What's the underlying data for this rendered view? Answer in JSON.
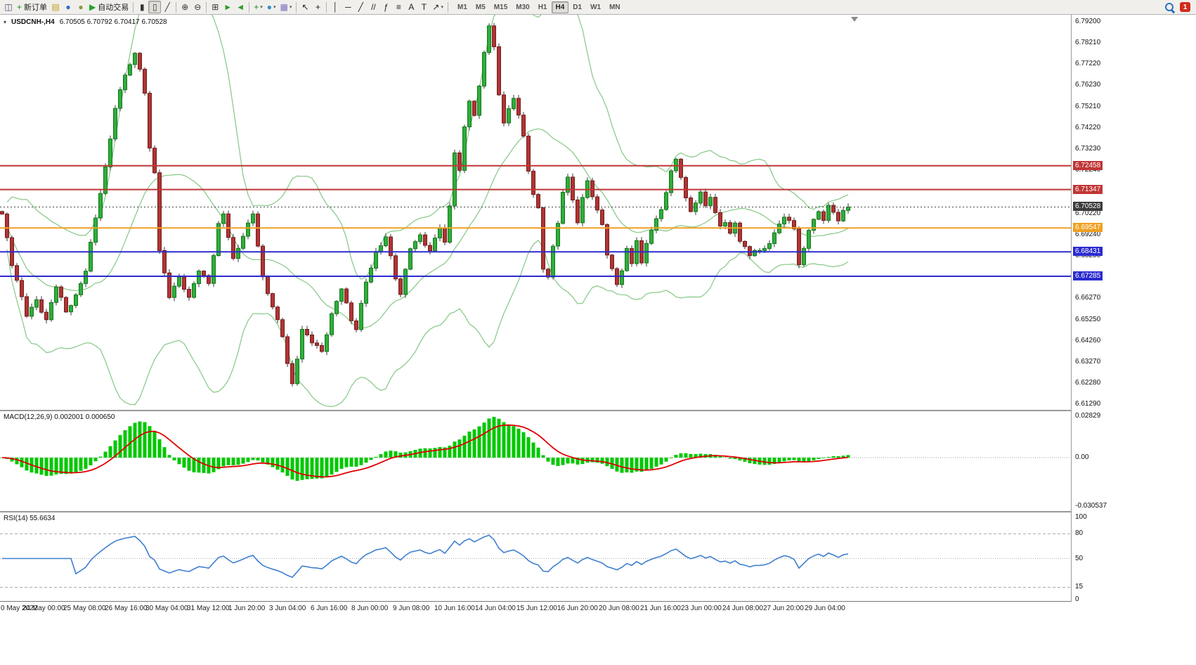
{
  "toolbar": {
    "new_order_label": "新订单",
    "autotrading_label": "自动交易",
    "timeframes": [
      "M1",
      "M5",
      "M15",
      "M30",
      "H1",
      "H4",
      "D1",
      "W1",
      "MN"
    ],
    "active_timeframe": "H4",
    "notification_count": "1",
    "icons": [
      {
        "name": "chart-window-icon",
        "glyph": "◫",
        "color": "#4a4a6a"
      },
      {
        "name": "new-order-button",
        "glyph": "+",
        "color": "#1a8f1a",
        "label": "new_order_label"
      },
      {
        "name": "market-watch-icon",
        "glyph": "▤",
        "color": "#c09a12"
      },
      {
        "name": "data-window-icon",
        "glyph": "●",
        "color": "#2f6fc4"
      },
      {
        "name": "navigator-icon",
        "glyph": "●",
        "color": "#8a9a3a"
      },
      {
        "name": "autotrading-button",
        "glyph": "▶",
        "color": "#23a52c",
        "label": "autotrading_label"
      },
      {
        "sep": true
      },
      {
        "name": "bar-chart-icon",
        "glyph": "▮",
        "color": "#333333"
      },
      {
        "name": "candlestick-chart-icon",
        "glyph": "▯",
        "color": "#333333",
        "active": true
      },
      {
        "name": "line-chart-icon",
        "glyph": "╱",
        "color": "#333333"
      },
      {
        "sep": true
      },
      {
        "name": "zoom-in-icon",
        "glyph": "⊕",
        "color": "#333333"
      },
      {
        "name": "zoom-out-icon",
        "glyph": "⊖",
        "color": "#333333"
      },
      {
        "sep": true
      },
      {
        "name": "tile-windows-icon",
        "glyph": "⊞",
        "color": "#333333"
      },
      {
        "name": "auto-scroll-icon",
        "glyph": "►",
        "color": "#2c9c2c"
      },
      {
        "name": "chart-shift-icon",
        "glyph": "◄",
        "color": "#2c9c2c"
      },
      {
        "sep": true
      },
      {
        "name": "indicators-button",
        "glyph": "+",
        "color": "#1a8f1a",
        "caret": true
      },
      {
        "name": "periods-button",
        "glyph": "●",
        "color": "#2f8fc4",
        "caret": true
      },
      {
        "name": "templates-button",
        "glyph": "▦",
        "color": "#7a6fc4",
        "caret": true
      },
      {
        "sep": true
      },
      {
        "name": "cursor-icon",
        "glyph": "↖",
        "color": "#222222"
      },
      {
        "name": "crosshair-icon",
        "glyph": "+",
        "color": "#222222"
      },
      {
        "sep": true
      },
      {
        "name": "vertical-line-icon",
        "glyph": "│",
        "color": "#222222"
      },
      {
        "name": "horizontal-line-icon",
        "glyph": "─",
        "color": "#222222"
      },
      {
        "name": "trendline-icon",
        "glyph": "╱",
        "color": "#222222"
      },
      {
        "name": "channel-icon",
        "glyph": "//",
        "color": "#222222"
      },
      {
        "name": "fibonacci-icon",
        "glyph": "ƒ",
        "color": "#222222"
      },
      {
        "name": "fibo-lines-icon",
        "glyph": "≡",
        "color": "#222222"
      },
      {
        "name": "text-icon",
        "glyph": "A",
        "color": "#222222"
      },
      {
        "name": "label-icon",
        "glyph": "T",
        "color": "#222222"
      },
      {
        "name": "arrows-icon",
        "glyph": "↗",
        "color": "#222222",
        "caret": true
      },
      {
        "sep": true
      }
    ]
  },
  "chart": {
    "symbol": "USDCNH-,H4",
    "ohlc": "6.70505 6.70792 6.70417 6.70528",
    "price_axis_labels": [
      [
        "6.79200",
        6.792
      ],
      [
        "6.78210",
        6.7821
      ],
      [
        "6.77220",
        6.7722
      ],
      [
        "6.76230",
        6.7623
      ],
      [
        "6.75210",
        6.7521
      ],
      [
        "6.74220",
        6.7422
      ],
      [
        "6.73230",
        6.7323
      ],
      [
        "6.72240",
        6.7224
      ],
      [
        "6.70220",
        6.7022
      ],
      [
        "6.69240",
        6.6924
      ],
      [
        "6.68250",
        6.6825
      ],
      [
        "6.66270",
        6.6627
      ],
      [
        "6.65250",
        6.6525
      ],
      [
        "6.64260",
        6.6426
      ],
      [
        "6.63270",
        6.6327
      ],
      [
        "6.62280",
        6.6228
      ],
      [
        "6.61290",
        6.6129
      ]
    ],
    "levels": [
      {
        "text": "6.72458",
        "price": 6.72458,
        "color": "#c13535"
      },
      {
        "text": "6.71347",
        "price": 6.71347,
        "color": "#c13535"
      },
      {
        "text": "6.69547",
        "price": 6.69547,
        "color": "#f0a020"
      },
      {
        "text": "6.68431",
        "price": 6.68431,
        "color": "#2b2bd0"
      },
      {
        "text": "6.67285",
        "price": 6.67285,
        "color": "#2b2bd0"
      }
    ],
    "current_price": {
      "text": "6.70528",
      "price": 6.70528,
      "badge_color": "#3c3c3c"
    },
    "date_labels": [
      "0 May 2022",
      "24 May 00:00",
      "25 May 08:00",
      "26 May 16:00",
      "30 May 04:00",
      "31 May 12:00",
      "1 Jun 20:00",
      "3 Jun 04:00",
      "6 Jun 16:00",
      "8 Jun 00:00",
      "9 Jun 08:00",
      "10 Jun 16:00",
      "14 Jun 04:00",
      "15 Jun 12:00",
      "16 Jun 20:00",
      "20 Jun 08:00",
      "21 Jun 16:00",
      "23 Jun 00:00",
      "24 Jun 08:00",
      "27 Jun 20:00",
      "29 Jun 04:00"
    ]
  },
  "macd": {
    "label": "MACD(12,26,9)",
    "values": "0.002001 0.000650",
    "axis_labels": [
      "0.02829",
      "0.00",
      "-0.030537"
    ]
  },
  "rsi": {
    "label": "RSI(14)",
    "value": "55.6634",
    "axis_labels": [
      [
        "100",
        100
      ],
      [
        "80",
        80
      ],
      [
        "50",
        50
      ],
      [
        "15",
        15
      ],
      [
        "0",
        0
      ]
    ],
    "level_lines": [
      80,
      50,
      15
    ]
  },
  "colors": {
    "up": "#2fae3a",
    "up_border": "#13761d",
    "down": "#b03434",
    "down_border": "#731d1d",
    "wick": "#3a3a3a",
    "bollinger": "#84c884",
    "macd_hist": "#00c800",
    "macd_signal": "#e00000",
    "rsi_line": "#3f7fd0",
    "level_red": "#c13535",
    "level_orange": "#f0a020",
    "level_blue": "#2b2bd0"
  },
  "chart_data": {
    "type": "candlestick",
    "symbol": "USDCNH",
    "timeframe": "H4",
    "ohlc_display": {
      "open": "6.70505",
      "high": "6.70792",
      "low": "6.70417",
      "close": "6.70528"
    },
    "price_range": [
      6.6103,
      6.7953
    ],
    "candle_count": 173,
    "close_path": [
      [
        0,
        6.702
      ],
      [
        2,
        6.678
      ],
      [
        5,
        6.655
      ],
      [
        7,
        6.662
      ],
      [
        9,
        6.652
      ],
      [
        11,
        6.668
      ],
      [
        13,
        6.656
      ],
      [
        15,
        6.664
      ],
      [
        17,
        6.676
      ],
      [
        19,
        6.7
      ],
      [
        21,
        6.723
      ],
      [
        23,
        6.752
      ],
      [
        25,
        6.768
      ],
      [
        27,
        6.7765
      ],
      [
        28,
        6.77
      ],
      [
        29,
        6.758
      ],
      [
        30,
        6.732
      ],
      [
        31,
        6.722
      ],
      [
        32,
        6.685
      ],
      [
        34,
        6.664
      ],
      [
        36,
        6.672
      ],
      [
        38,
        6.662
      ],
      [
        40,
        6.676
      ],
      [
        42,
        6.67
      ],
      [
        44,
        6.697
      ],
      [
        45,
        6.702
      ],
      [
        47,
        6.68
      ],
      [
        49,
        6.692
      ],
      [
        51,
        6.703
      ],
      [
        53,
        6.672
      ],
      [
        55,
        6.658
      ],
      [
        57,
        6.645
      ],
      [
        58,
        6.632
      ],
      [
        59,
        6.6225
      ],
      [
        61,
        6.648
      ],
      [
        63,
        6.642
      ],
      [
        65,
        6.637
      ],
      [
        67,
        6.655
      ],
      [
        69,
        6.668
      ],
      [
        71,
        6.652
      ],
      [
        72,
        6.648
      ],
      [
        74,
        6.67
      ],
      [
        76,
        6.684
      ],
      [
        78,
        6.692
      ],
      [
        80,
        6.672
      ],
      [
        81,
        6.664
      ],
      [
        83,
        6.686
      ],
      [
        85,
        6.692
      ],
      [
        87,
        6.685
      ],
      [
        89,
        6.696
      ],
      [
        90,
        6.688
      ],
      [
        91,
        6.705
      ],
      [
        92,
        6.731
      ],
      [
        93,
        6.722
      ],
      [
        94,
        6.743
      ],
      [
        95,
        6.756
      ],
      [
        96,
        6.748
      ],
      [
        97,
        6.762
      ],
      [
        98,
        6.778
      ],
      [
        99,
        6.789
      ],
      [
        100,
        6.78
      ],
      [
        101,
        6.758
      ],
      [
        102,
        6.744
      ],
      [
        103,
        6.752
      ],
      [
        104,
        6.757
      ],
      [
        105,
        6.748
      ],
      [
        106,
        6.739
      ],
      [
        107,
        6.722
      ],
      [
        108,
        6.71
      ],
      [
        109,
        6.705
      ],
      [
        110,
        6.676
      ],
      [
        111,
        6.672
      ],
      [
        112,
        6.688
      ],
      [
        113,
        6.698
      ],
      [
        114,
        6.712
      ],
      [
        115,
        6.72
      ],
      [
        116,
        6.708
      ],
      [
        117,
        6.697
      ],
      [
        118,
        6.71
      ],
      [
        119,
        6.717
      ],
      [
        120,
        6.71
      ],
      [
        121,
        6.705
      ],
      [
        122,
        6.697
      ],
      [
        123,
        6.683
      ],
      [
        124,
        6.677
      ],
      [
        125,
        6.668
      ],
      [
        126,
        6.675
      ],
      [
        127,
        6.686
      ],
      [
        128,
        6.678
      ],
      [
        129,
        6.69
      ],
      [
        130,
        6.68
      ],
      [
        131,
        6.688
      ],
      [
        132,
        6.695
      ],
      [
        133,
        6.7
      ],
      [
        134,
        6.703
      ],
      [
        135,
        6.712
      ],
      [
        136,
        6.722
      ],
      [
        137,
        6.727
      ],
      [
        138,
        6.72
      ],
      [
        139,
        6.71
      ],
      [
        140,
        6.703
      ],
      [
        141,
        6.708
      ],
      [
        142,
        6.712
      ],
      [
        143,
        6.705
      ],
      [
        144,
        6.71
      ],
      [
        145,
        6.702
      ],
      [
        146,
        6.696
      ],
      [
        147,
        6.699
      ],
      [
        148,
        6.693
      ],
      [
        149,
        6.698
      ],
      [
        150,
        6.69
      ],
      [
        151,
        6.686
      ],
      [
        152,
        6.682
      ],
      [
        153,
        6.685
      ],
      [
        154,
        6.684
      ],
      [
        155,
        6.686
      ],
      [
        156,
        6.689
      ],
      [
        157,
        6.693
      ],
      [
        158,
        6.698
      ],
      [
        159,
        6.701
      ],
      [
        160,
        6.698
      ],
      [
        161,
        6.695
      ],
      [
        162,
        6.678
      ],
      [
        163,
        6.685
      ],
      [
        164,
        6.695
      ],
      [
        165,
        6.7
      ],
      [
        166,
        6.703
      ],
      [
        167,
        6.7
      ],
      [
        168,
        6.706
      ],
      [
        169,
        6.702
      ],
      [
        170,
        6.699
      ],
      [
        171,
        6.703
      ],
      [
        172,
        6.70528
      ]
    ],
    "indicators": {
      "bollinger": {
        "period": 20,
        "deviation": 2
      },
      "macd": {
        "fast": 12,
        "slow": 26,
        "signal": 9,
        "current_values": "0.002001 0.000650"
      },
      "rsi": {
        "period": 14,
        "current_value": 55.6634
      }
    },
    "horizontal_levels": [
      6.72458,
      6.71347,
      6.69547,
      6.68431,
      6.67285
    ]
  }
}
